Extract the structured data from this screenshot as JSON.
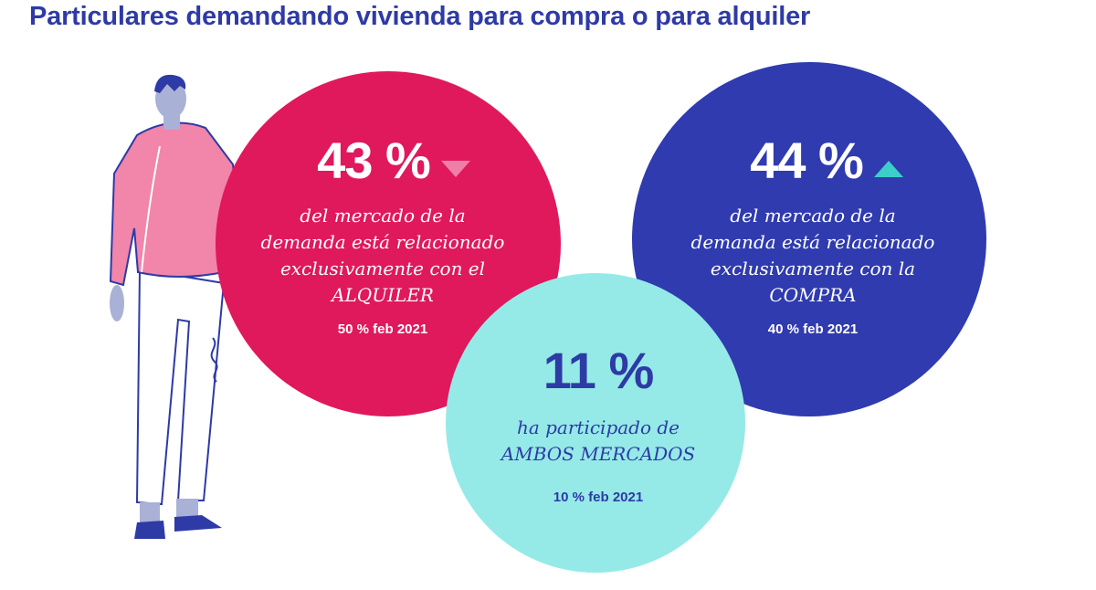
{
  "title": "Particulares demandando vivienda para compra o para alquiler",
  "alquiler": {
    "percent": "43 %",
    "line1": "del mercado de la",
    "line2": "demanda está relacionado",
    "line3": "exclusivamente con el",
    "line4": "ALQUILER",
    "previous": "50 % feb 2021",
    "trend": "down",
    "color": "#e0185c"
  },
  "compra": {
    "percent": "44 %",
    "line1": "del mercado de la",
    "line2": "demanda está relacionado",
    "line3": "exclusivamente con la",
    "line4": "COMPRA",
    "previous": "40 % feb 2021",
    "trend": "up",
    "color": "#2f3bae"
  },
  "ambos": {
    "percent": "11 %",
    "line1": "ha participado de",
    "line2": "AMBOS MERCADOS",
    "previous": "10 % feb 2021",
    "color": "#95eae7"
  }
}
